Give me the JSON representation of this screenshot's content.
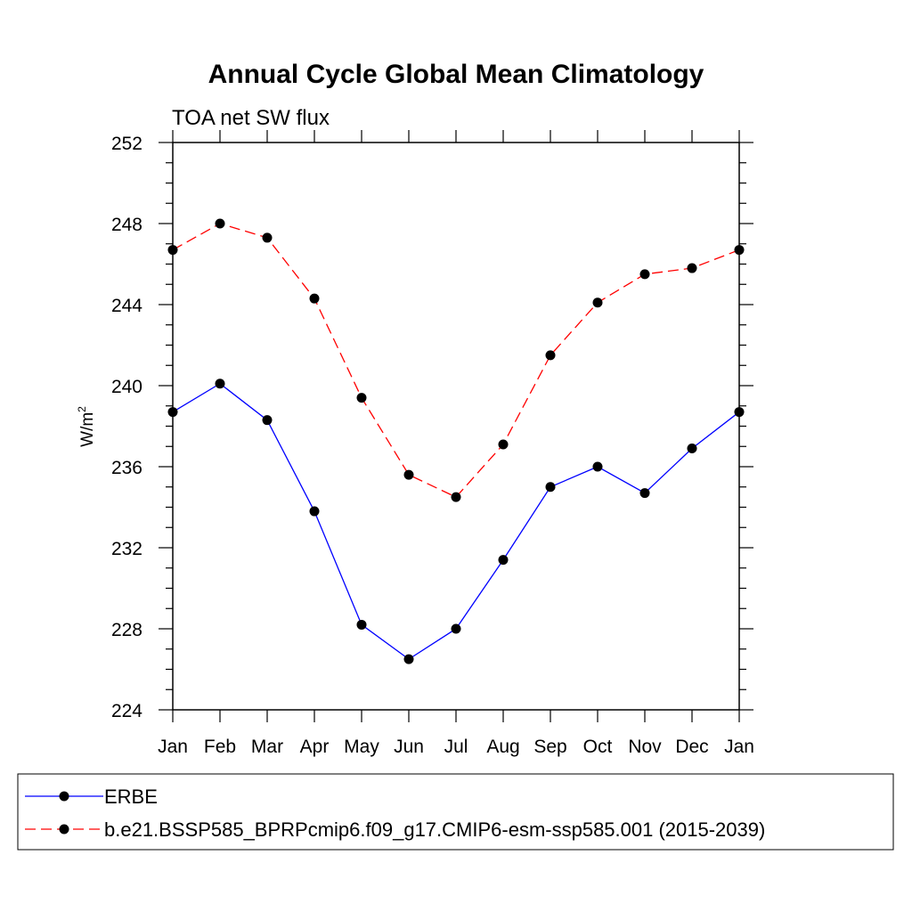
{
  "chart_data": {
    "type": "line",
    "title": "Annual Cycle Global Mean Climatology",
    "subtitle": "TOA net SW flux",
    "ylabel": {
      "base": "W/m",
      "sup": "2"
    },
    "xlabel": "",
    "categories": [
      "Jan",
      "Feb",
      "Mar",
      "Apr",
      "May",
      "Jun",
      "Jul",
      "Aug",
      "Sep",
      "Oct",
      "Nov",
      "Dec",
      "Jan"
    ],
    "ylim": [
      224,
      252
    ],
    "yticks": [
      224,
      228,
      232,
      236,
      240,
      244,
      248,
      252
    ],
    "grid": false,
    "legend_position": "bottom",
    "series": [
      {
        "name": "ERBE",
        "color": "#0000ff",
        "dashed": false,
        "marker": "filled-circle",
        "values": [
          238.7,
          240.1,
          238.3,
          233.8,
          228.2,
          226.5,
          228.0,
          231.4,
          235.0,
          236.0,
          234.7,
          236.9,
          238.7
        ]
      },
      {
        "name": "b.e21.BSSP585_BPRPcmip6.f09_g17.CMIP6-esm-ssp585.001 (2015-2039)",
        "color": "#ff0000",
        "dashed": true,
        "marker": "filled-circle",
        "values": [
          246.7,
          248.0,
          247.3,
          244.3,
          239.4,
          235.6,
          234.5,
          237.1,
          241.5,
          244.1,
          245.5,
          245.8,
          246.7
        ]
      }
    ]
  }
}
